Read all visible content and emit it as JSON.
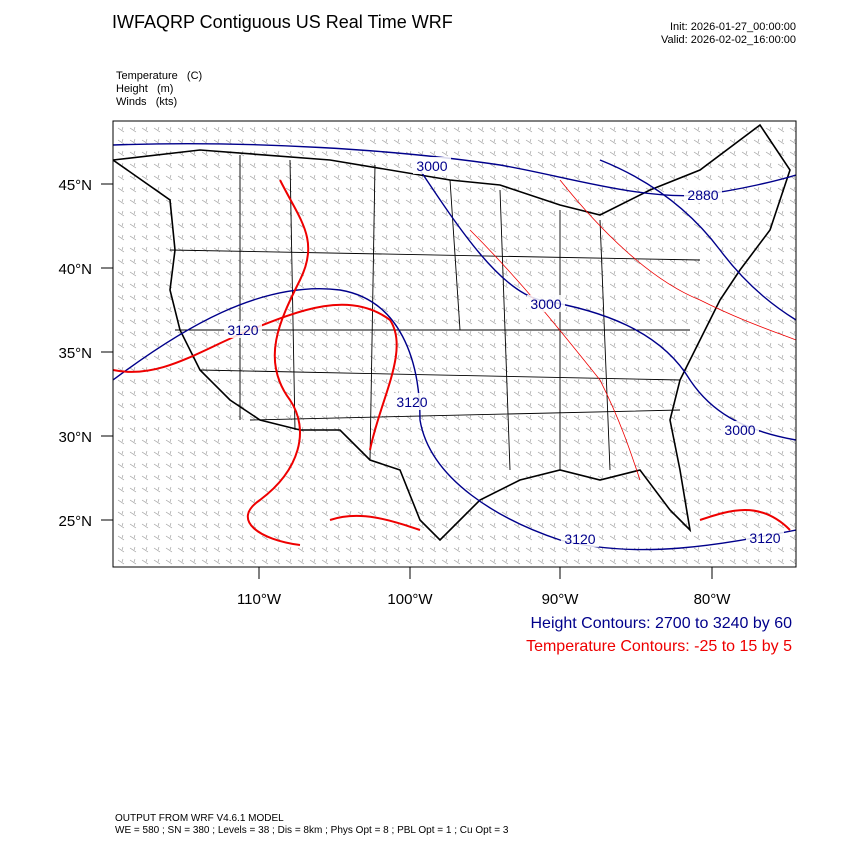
{
  "header": {
    "title": "IWFAQRP Contiguous US Real Time WRF",
    "init": "Init: 2026-01-27_00:00:00",
    "valid": "Valid: 2026-02-02_16:00:00"
  },
  "fields": [
    "Temperature   (C)",
    "Height   (m)",
    "Winds   (kts)"
  ],
  "map": {
    "lat_labels": [
      "45°N",
      "40°N",
      "35°N",
      "30°N",
      "25°N"
    ],
    "lon_labels": [
      "110°W",
      "100°W",
      "90°W",
      "80°W"
    ],
    "contour_labels": [
      "3000",
      "2880",
      "3000",
      "3120",
      "3120",
      "3000",
      "3120",
      "3120"
    ]
  },
  "legend": {
    "height": "Height Contours: 2700 to 3240 by 60",
    "temperature": "Temperature Contours: -25 to 15 by 5"
  },
  "footer": {
    "model": "OUTPUT FROM WRF V4.6.1 MODEL",
    "settings": "WE = 580 ; SN = 380 ; Levels = 38 ; Dis = 8km ; Phys Opt = 8 ; PBL Opt = 1 ; Cu Opt = 3"
  }
}
